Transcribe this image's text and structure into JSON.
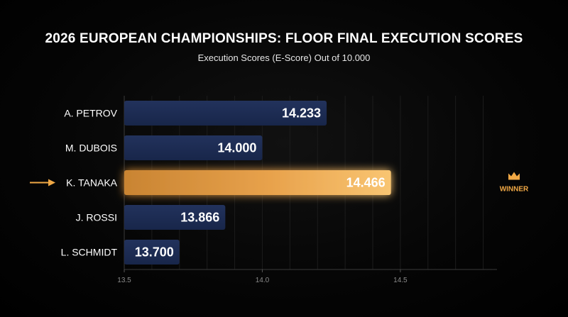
{
  "chart_data": {
    "type": "bar",
    "orientation": "horizontal",
    "title": "2026 EUROPEAN CHAMPIONSHIPS: FLOOR FINAL EXECUTION SCORES",
    "subtitle": "Execution Scores (E-Score) Out of 10.000",
    "categories": [
      "A. PETROV",
      "M. DUBOIS",
      "K. TANAKA",
      "J. ROSSI",
      "L. SCHMIDT"
    ],
    "values": [
      14.233,
      14.0,
      14.466,
      13.866,
      13.7
    ],
    "value_labels": [
      "14.233",
      "14.000",
      "14.466",
      "13.866",
      "13.700"
    ],
    "xlim": [
      13.5,
      14.85
    ],
    "xticks": [
      13.5,
      14.0,
      14.5
    ],
    "xtick_labels": [
      "13.5",
      "14.0",
      "14.5"
    ],
    "grid": true,
    "highlight_index": 2,
    "highlight_label": "WINNER",
    "colors": {
      "bar": "#1d2b50",
      "highlight": "#f4b45a",
      "highlight_dark": "#c98432",
      "background": "#000000",
      "accent": "#f0a845"
    }
  }
}
